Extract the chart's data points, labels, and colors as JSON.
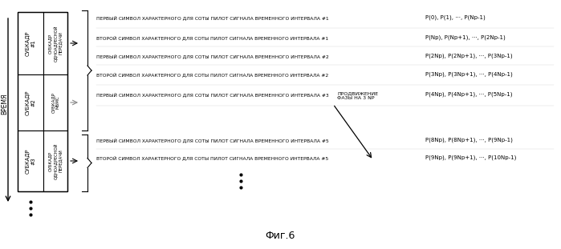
{
  "title": "Фиг.6",
  "background_color": "#ffffff",
  "time_label": "ВРЕМЯ",
  "subkadр_label": "СУБКАДР",
  "sf_labels": [
    "СУБКАДР\n#1",
    "СУБКАДР\n#2",
    "СУБКАДР\n#3"
  ],
  "inner_label1": "СУБКАДР\nОДНОАДРЕСНОЙ\nПЕРЕДАЧИ",
  "inner_label2": "СУБКАДР\nМБМС",
  "inner_label3": "СУБКАДР\nОДНОАДРЕСНОЙ\nПЕРЕДАЧИ",
  "phase_label": "ПРОДВИЖЕНИЕ\nФАЗЫ НА 3 NP",
  "rows": [
    {
      "text": "ПЕРВЫЙ СИМВОЛ ХАРАКТЕРНОГО ДЛЯ СОТЫ ПИЛОТ СИГНАЛА ВРЕМЕННОГО ИНТЕРВАЛА #1",
      "formula": "P(0), P(1), ···, P(Np-1)"
    },
    {
      "text": "ВТОРОЙ СИМВОЛ ХАРАКТЕРНОГО ДЛЯ СОТЫ ПИЛОТ СИГНАЛА ВРЕМЕННОГО ИНТЕРВАЛА #1",
      "formula": "P(Np), P(Np+1), ···, P(2Np-1)"
    },
    {
      "text": "ПЕРВЫЙ СИМВОЛ ХАРАКТЕРНОГО ДЛЯ СОТЫ ПИЛОТ СИГНАЛА ВРЕМЕННОГО ИНТЕРВАЛА #2",
      "formula": "P(2Np), P(2Np+1), ···, P(3Np-1)"
    },
    {
      "text": "ВТОРОЙ СИМВОЛ ХАРАКТЕРНОГО ДЛЯ СОТЫ ПИЛОТ СИГНАЛА ВРЕМЕННОГО ИНТЕРВАЛА #2",
      "formula": "P(3Np), P(3Np+1), ···, P(4Np-1)"
    },
    {
      "text": "ПЕРВЫЙ СИМВОЛ ХАРАКТЕРНОГО ДЛЯ СОТЫ ПИЛОТ СИГНАЛА ВРЕМЕННОГО ИНТЕРВАЛА #3",
      "formula": "P(4Np), P(4Np+1), ···, P(5Np-1)"
    },
    {
      "text": "ПЕРВЫЙ СИМВОЛ ХАРАКТЕРНОГО ДЛЯ СОТЫ ПИЛОТ СИГНАЛА ВРЕМЕННОГО ИНТЕРВАЛА #5",
      "formula": "P(8Np), P(8Np+1), ···, P(9Np-1)"
    },
    {
      "text": "ВТОРОЙ СИМВОЛ ХАРАКТЕРНОГО ДЛЯ СОТЫ ПИЛОТ СИГНАЛА ВРЕМЕННОГО ИНТЕРВАЛА #5",
      "formula": "P(9Np), P(9Np+1), ···, P(10Np-1)"
    }
  ]
}
